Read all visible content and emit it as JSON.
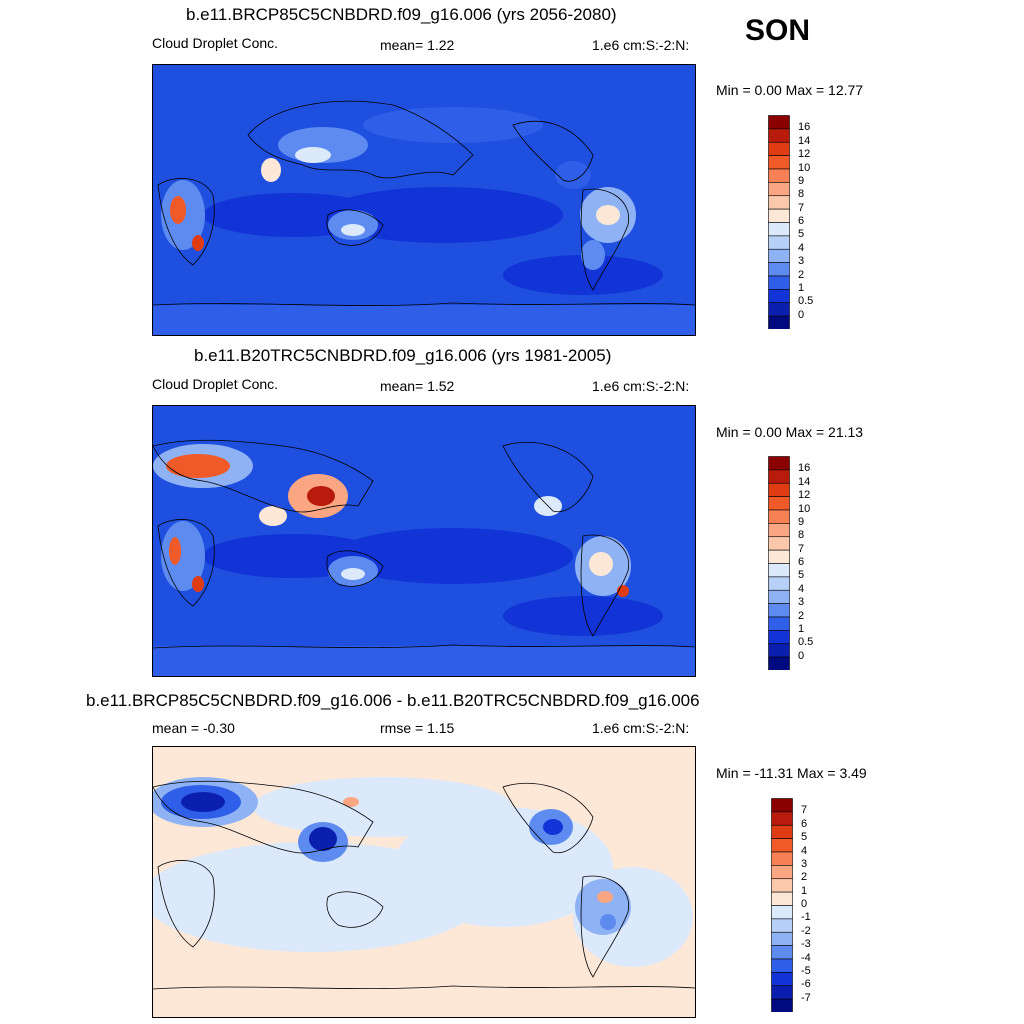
{
  "season": "SON",
  "panels": [
    {
      "title": "b.e11.BRCP85C5CNBDRD.f09_g16.006 (yrs 2056-2080)",
      "left_label": "Cloud Droplet Conc.",
      "center_label": "mean=   1.22",
      "right_label": "1.e6 cm:S:-2:N:",
      "minmax": "Min =   0.00 Max =  12.77",
      "colorbar": {
        "labels": [
          "16",
          "14",
          "12",
          "10",
          "9",
          "8",
          "7",
          "6",
          "5",
          "4",
          "3",
          "2",
          "1",
          "0.5",
          "0"
        ],
        "colors": [
          "#8b0000",
          "#b81a0b",
          "#e03c14",
          "#f05a28",
          "#f78055",
          "#fba682",
          "#fcc8ac",
          "#fde8d8",
          "#dce9fb",
          "#b6d0f8",
          "#8fb2f4",
          "#5d8bef",
          "#2f5fe8",
          "#1233d6",
          "#0a1fb0",
          "#000a80"
        ]
      }
    },
    {
      "title": "b.e11.B20TRC5CNBDRD.f09_g16.006 (yrs 1981-2005)",
      "left_label": "Cloud Droplet Conc.",
      "center_label": "mean=   1.52",
      "right_label": "1.e6 cm:S:-2:N:",
      "minmax": "Min =   0.00 Max =  21.13",
      "colorbar": {
        "labels": [
          "16",
          "14",
          "12",
          "10",
          "9",
          "8",
          "7",
          "6",
          "5",
          "4",
          "3",
          "2",
          "1",
          "0.5",
          "0"
        ],
        "colors": [
          "#8b0000",
          "#b81a0b",
          "#e03c14",
          "#f05a28",
          "#f78055",
          "#fba682",
          "#fcc8ac",
          "#fde8d8",
          "#dce9fb",
          "#b6d0f8",
          "#8fb2f4",
          "#5d8bef",
          "#2f5fe8",
          "#1233d6",
          "#0a1fb0",
          "#000a80"
        ]
      }
    },
    {
      "title": "b.e11.BRCP85C5CNBDRD.f09_g16.006 - b.e11.B20TRC5CNBDRD.f09_g16.006",
      "left_label": "mean =  -0.30",
      "center_label": "rmse =   1.15",
      "right_label": "1.e6 cm:S:-2:N:",
      "minmax": "Min = -11.31 Max =   3.49",
      "colorbar": {
        "labels": [
          "7",
          "6",
          "5",
          "4",
          "3",
          "2",
          "1",
          "0",
          "-1",
          "-2",
          "-3",
          "-4",
          "-5",
          "-6",
          "-7"
        ],
        "colors": [
          "#8b0000",
          "#b81a0b",
          "#e03c14",
          "#f05a28",
          "#f78055",
          "#fba682",
          "#fcc8ac",
          "#fde8d8",
          "#dce9fb",
          "#b6d0f8",
          "#8fb2f4",
          "#5d8bef",
          "#2f5fe8",
          "#1233d6",
          "#0a1fb0",
          "#000a80"
        ]
      }
    }
  ]
}
